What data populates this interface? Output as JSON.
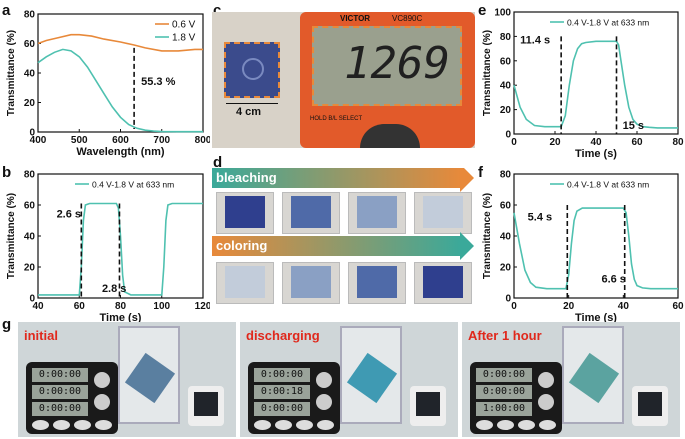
{
  "panels": {
    "a": {
      "label": "a",
      "chart_data": {
        "type": "line",
        "xlabel": "Wavelength (nm)",
        "ylabel": "Transmittance (%)",
        "xlim": [
          400,
          800
        ],
        "ylim": [
          0,
          80
        ],
        "xticks": [
          400,
          500,
          600,
          700,
          800
        ],
        "yticks": [
          0,
          20,
          40,
          60,
          80
        ],
        "legend": "top-right",
        "series": [
          {
            "name": "0.6 V",
            "color": "#e8893a",
            "x": [
              400,
              420,
              450,
              480,
              500,
              530,
              560,
              600,
              633,
              660,
              700,
              740,
              780,
              800
            ],
            "y": [
              60,
              62,
              64,
              66,
              66,
              65,
              63,
              61,
              59,
              57,
              55,
              55,
              56,
              56
            ]
          },
          {
            "name": "1.8 V",
            "color": "#4fc1b0",
            "x": [
              400,
              420,
              440,
              460,
              480,
              500,
              520,
              540,
              560,
              580,
              600,
              620,
              640,
              660,
              680,
              700,
              740,
              800
            ],
            "y": [
              47,
              51,
              54,
              56,
              55,
              51,
              44,
              35,
              26,
              17,
              10,
              5,
              2.5,
              1.2,
              0.6,
              0.3,
              0.2,
              0.2
            ]
          }
        ],
        "annotation": {
          "text": "55.3 %",
          "x": 633
        }
      }
    },
    "b": {
      "label": "b",
      "chart_data": {
        "type": "line",
        "xlabel": "Time (s)",
        "ylabel": "Transmittance (%)",
        "xlim": [
          40,
          120
        ],
        "ylim": [
          0,
          80
        ],
        "xticks": [
          40,
          60,
          80,
          100,
          120
        ],
        "yticks": [
          0,
          20,
          40,
          60,
          80
        ],
        "legend": "top-right",
        "series": [
          {
            "name": "0.4 V-1.8 V at 633 nm",
            "color": "#4fc1b0",
            "x": [
              40,
              55,
              60,
              61,
              62,
              63,
              65,
              78,
              79,
              80,
              81,
              82,
              85,
              100,
              101,
              102,
              103,
              105,
              110,
              120
            ],
            "y": [
              2,
              2,
              2,
              20,
              50,
              60,
              61,
              61,
              58,
              40,
              15,
              4,
              2,
              2,
              20,
              50,
              60,
              61,
              61,
              61
            ]
          }
        ],
        "annotations": [
          {
            "text": "2.6 s",
            "x": 62
          },
          {
            "text": "2.8 s",
            "x": 80.5
          }
        ]
      }
    },
    "c": {
      "label": "c",
      "scale_text": "4 cm",
      "meter_brand": "VICTOR",
      "meter_model": "VC890C",
      "meter_reading": "1269",
      "hold_text": "HOLD B/L SELECT"
    },
    "d": {
      "label": "d",
      "bleaching_text": "bleaching",
      "coloring_text": "coloring"
    },
    "e": {
      "label": "e",
      "chart_data": {
        "type": "line",
        "xlabel": "Time (s)",
        "ylabel": "Transmittance (%)",
        "xlim": [
          0,
          80
        ],
        "ylim": [
          0,
          100
        ],
        "xticks": [
          0,
          20,
          40,
          60,
          80
        ],
        "yticks": [
          0,
          20,
          40,
          60,
          80,
          100
        ],
        "legend": "top-right",
        "series": [
          {
            "name": "0.4 V-1.8 V at 633 nm",
            "color": "#4fc1b0",
            "x": [
              0,
              3,
              6,
              10,
              15,
              20,
              23,
              25,
              27,
              29,
              31,
              33,
              35,
              40,
              45,
              50,
              51,
              52,
              54,
              56,
              58,
              60,
              63,
              66,
              70,
              75,
              80
            ],
            "y": [
              40,
              22,
              12,
              7,
              6,
              6,
              6,
              15,
              40,
              60,
              70,
              74,
              75,
              76,
              76,
              76,
              73,
              62,
              40,
              22,
              12,
              8,
              6,
              5.5,
              5,
              5,
              5
            ]
          }
        ],
        "annotations": [
          {
            "text": "11.4 s",
            "x": 28
          },
          {
            "text": "15 s",
            "x": 57
          }
        ]
      }
    },
    "f": {
      "label": "f",
      "chart_data": {
        "type": "line",
        "xlabel": "Time (s)",
        "ylabel": "Transmittance (%)",
        "xlim": [
          0,
          60
        ],
        "ylim": [
          0,
          80
        ],
        "xticks": [
          0,
          20,
          40,
          60
        ],
        "yticks": [
          0,
          20,
          40,
          60,
          80
        ],
        "legend": "top-right",
        "series": [
          {
            "name": "0.4 V-1.8 V at 633 nm",
            "color": "#4fc1b0",
            "x": [
              0,
              2,
              4,
              6,
              8,
              12,
              16,
              19,
              20,
              21,
              22,
              23,
              25,
              30,
              40,
              41,
              42,
              43,
              44,
              45,
              47,
              50,
              55,
              60
            ],
            "y": [
              55,
              35,
              18,
              10,
              7,
              6,
              6,
              6,
              15,
              35,
              50,
              56,
              58,
              58,
              58,
              55,
              40,
              22,
              12,
              8,
              6.5,
              6,
              6,
              6
            ]
          }
        ],
        "annotations": [
          {
            "text": "5.4 s",
            "x": 22
          },
          {
            "text": "6.6 s",
            "x": 43
          }
        ]
      }
    },
    "g": {
      "label": "g",
      "photos": [
        {
          "title": "initial",
          "top": "0:00:00",
          "mid": "0:00:00",
          "bot": "0:00:00",
          "cube_color": "#5a7fa0"
        },
        {
          "title": "discharging",
          "top": "0:00:00",
          "mid": "0:00:18",
          "bot": "0:00:00",
          "cube_color": "#3f9ab3"
        },
        {
          "title": "After 1 hour",
          "top": "0:00:00",
          "mid": "0:00:00",
          "bot": "1:00:00",
          "cube_color": "#5ba3a0"
        }
      ]
    }
  }
}
